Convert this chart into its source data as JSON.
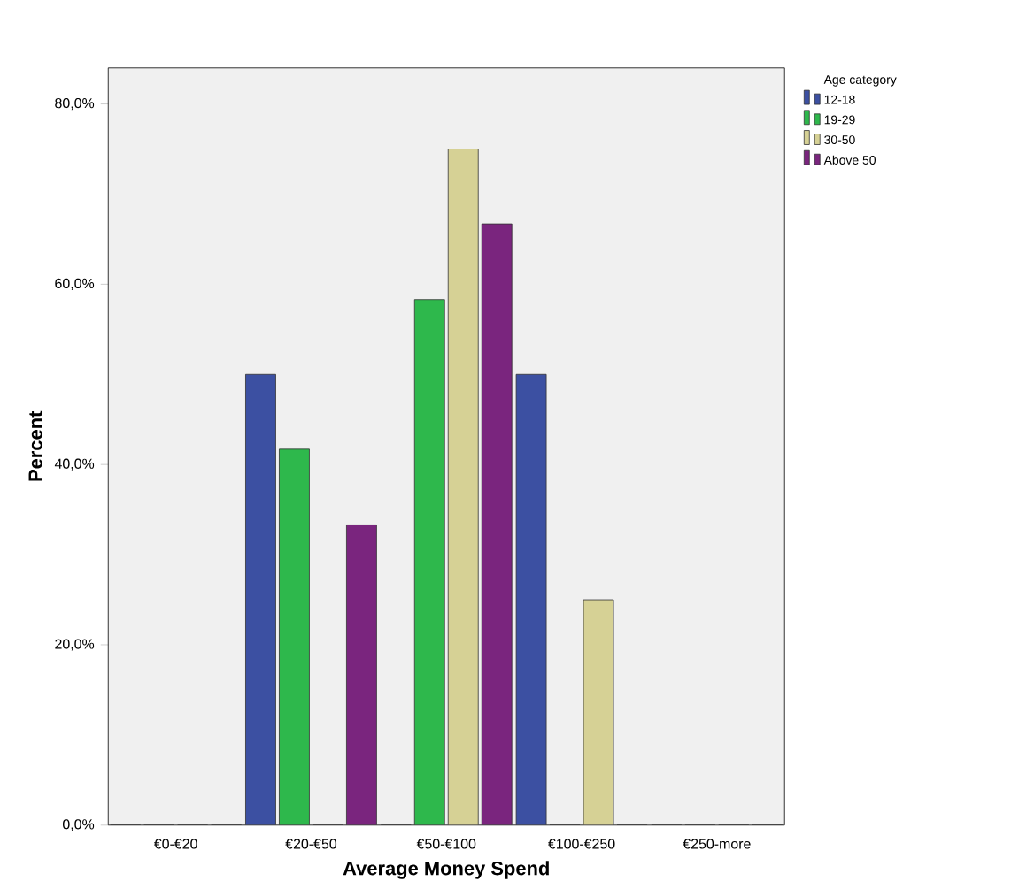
{
  "chart_data": {
    "type": "bar",
    "xlabel": "Average Money Spend",
    "ylabel": "Percent",
    "legend_title": "Age category",
    "legend": "top right",
    "categories": [
      "€0-€20",
      "€20-€50",
      "€50-€100",
      "€100-€250",
      "€250-more"
    ],
    "series": [
      {
        "name": "12-18",
        "color": "#3c50a2",
        "values": [
          0,
          50,
          0,
          50,
          0
        ]
      },
      {
        "name": "19-29",
        "color": "#2eb84c",
        "values": [
          0,
          41.7,
          58.3,
          0,
          0
        ]
      },
      {
        "name": "30-50",
        "color": "#d6d195",
        "values": [
          0,
          0,
          75,
          25,
          0
        ]
      },
      {
        "name": "Above 50",
        "color": "#7a257e",
        "values": [
          0,
          33.3,
          66.7,
          0,
          0
        ]
      }
    ],
    "ylim": [
      0,
      84
    ],
    "yticks": [
      {
        "value": 0,
        "label": "0,0%"
      },
      {
        "value": 20,
        "label": "20,0%"
      },
      {
        "value": 40,
        "label": "40,0%"
      },
      {
        "value": 60,
        "label": "60,0%"
      },
      {
        "value": 80,
        "label": "80,0%"
      }
    ],
    "grid": false
  }
}
